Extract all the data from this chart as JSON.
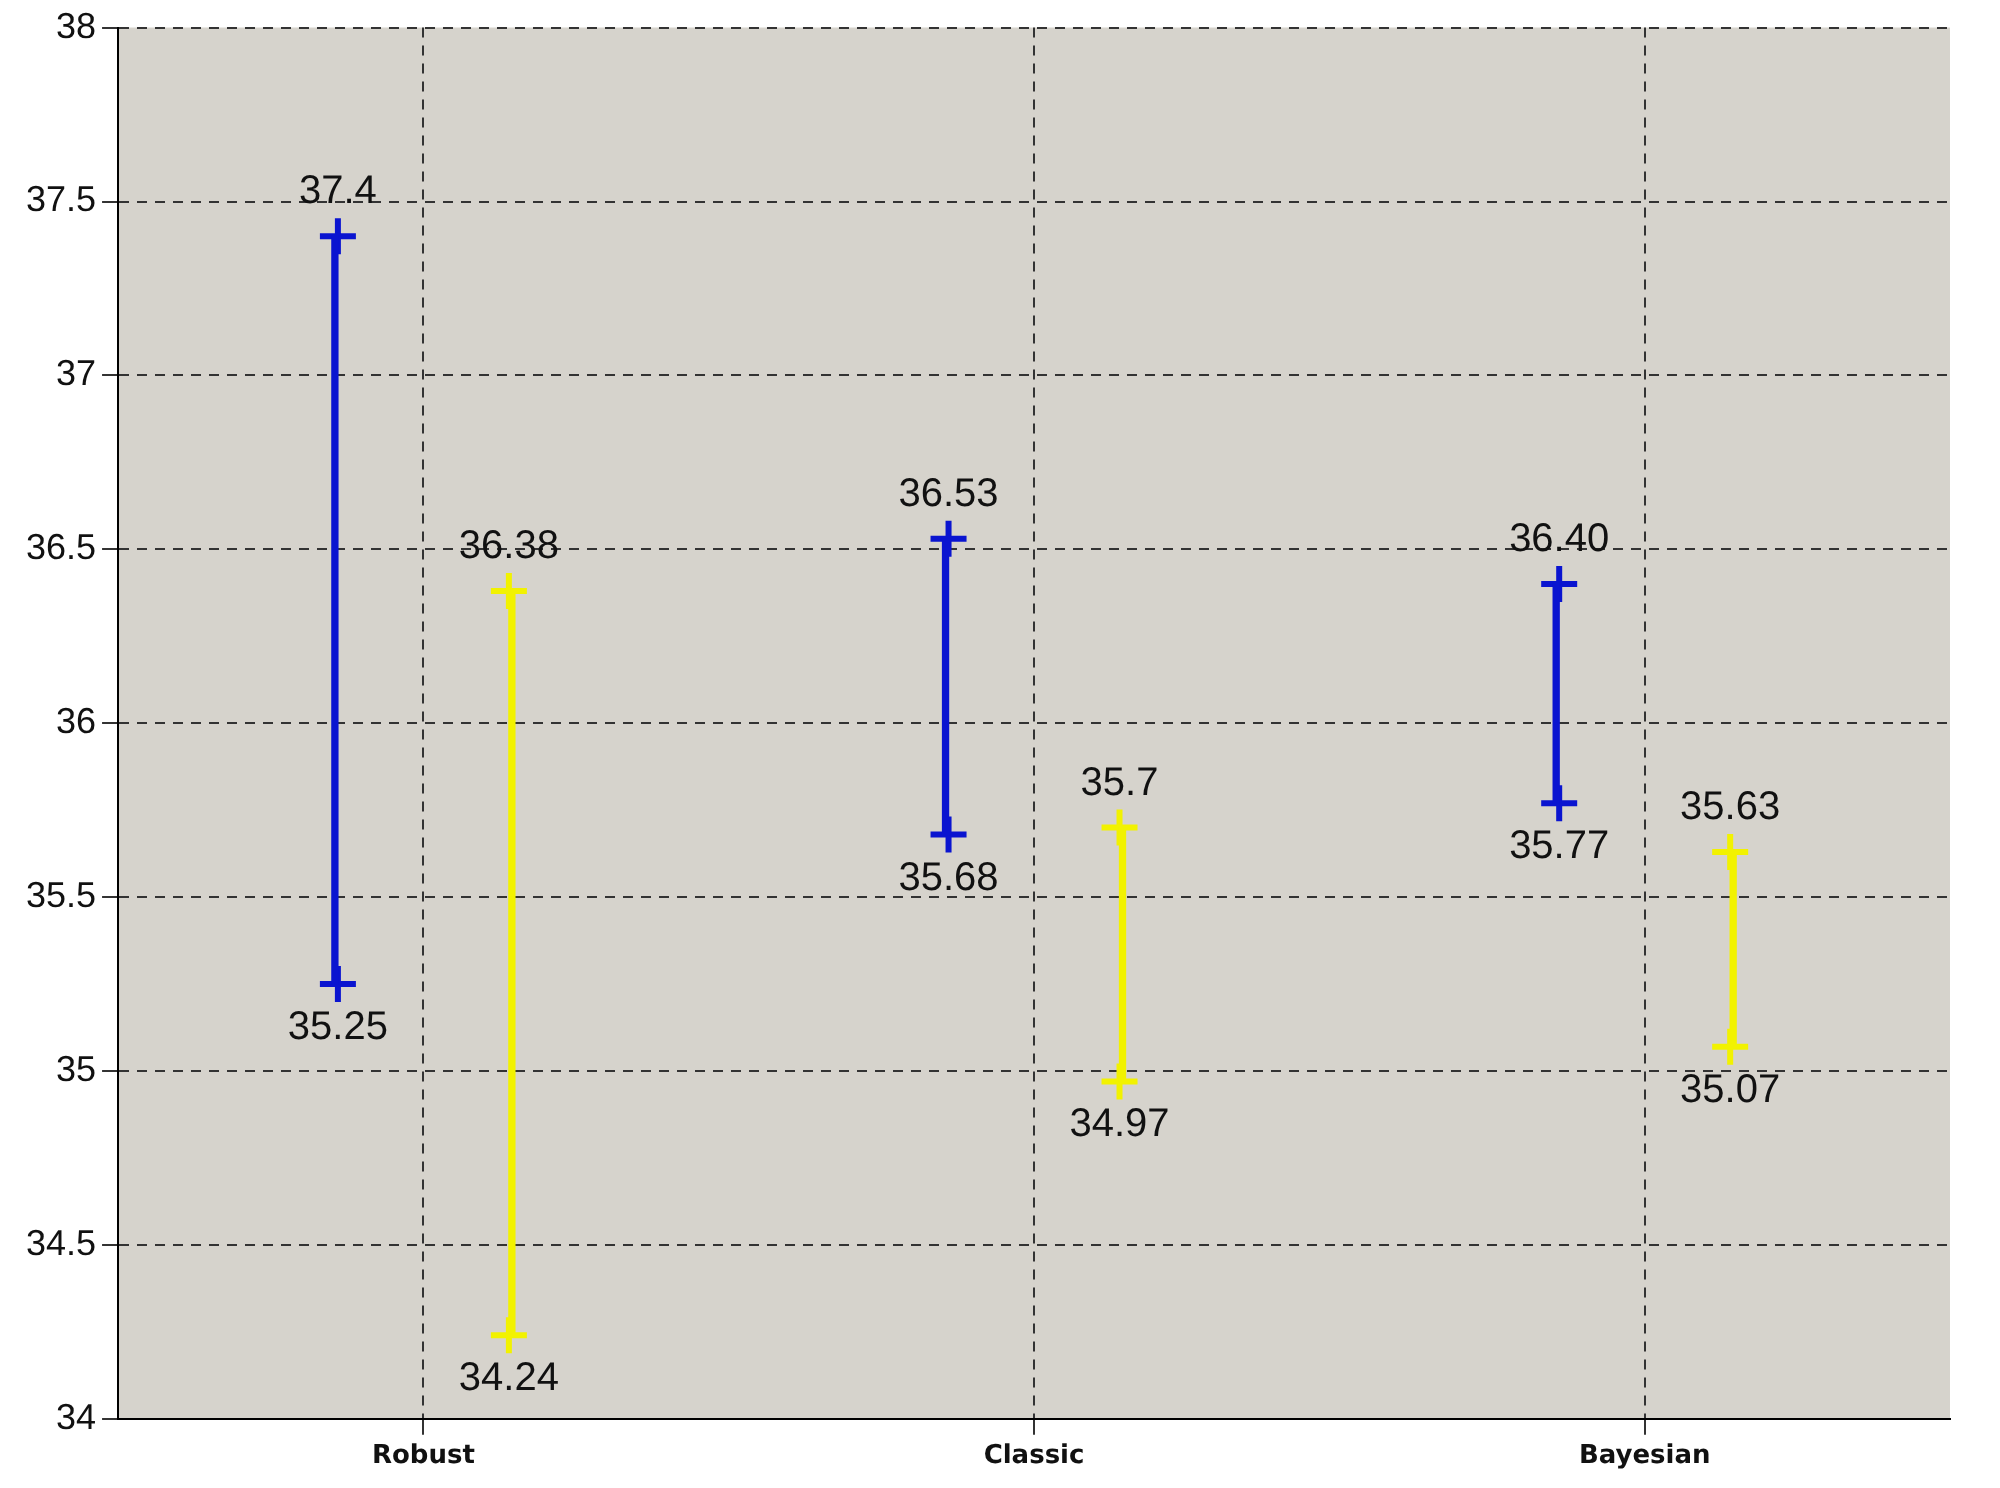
{
  "chart_data": {
    "type": "bar",
    "categories": [
      "Robust",
      "Classic",
      "Bayesian"
    ],
    "series": [
      {
        "color": "#0a14d0",
        "base": [
          35.25,
          35.68,
          35.77
        ],
        "values": [
          2.15,
          0.85,
          0.63
        ]
      },
      {
        "color": "#f2f200",
        "base": [
          34.24,
          34.97,
          35.07
        ],
        "values": [
          2.14,
          0.73,
          0.56
        ]
      },
      {
        "type": "scatter",
        "color": "#0a14d0",
        "x": [
          "Robust",
          "Robust",
          "Classic",
          "Classic",
          "Bayesian",
          "Bayesian"
        ],
        "values": [
          37.4,
          35.25,
          36.53,
          35.68,
          36.4,
          35.77
        ],
        "value_labels": [
          "37.4",
          "35.25",
          "36.53",
          "35.68",
          "36.40",
          "35.77"
        ]
      },
      {
        "type": "scatter",
        "color": "#f2f200",
        "x": [
          "Robust",
          "Robust",
          "Classic",
          "Classic",
          "Bayesian",
          "Bayesian"
        ],
        "values": [
          36.38,
          34.24,
          35.7,
          34.97,
          35.63,
          35.07
        ],
        "value_labels": [
          "36.38",
          "34.24",
          "35.7",
          "34.97",
          "35.63",
          "35.07"
        ]
      }
    ],
    "marker": "cross",
    "legend": false,
    "ylim": [
      34,
      38
    ],
    "yticks": [
      34,
      34.5,
      35,
      35.5,
      36,
      36.5,
      37,
      37.5,
      38
    ],
    "grid": true
  }
}
